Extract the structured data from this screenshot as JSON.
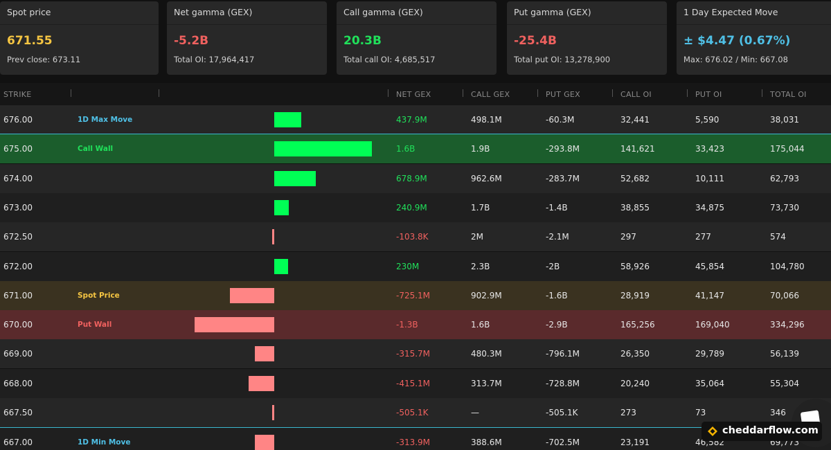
{
  "colors": {
    "green": "#20e05a",
    "red": "#f0615f",
    "yellow": "#f5c542",
    "blue": "#4fc0e6",
    "bar_pos": "#00ff55",
    "bar_neg": "#ff8585"
  },
  "cards": [
    {
      "title": "Spot price",
      "value": "671.55",
      "sub": "Prev close: 673.11",
      "color": "#f5c542"
    },
    {
      "title": "Net gamma (GEX)",
      "value": "-5.2B",
      "sub": "Total OI: 17,964,417",
      "color": "#f0615f"
    },
    {
      "title": "Call gamma (GEX)",
      "value": "20.3B",
      "sub": "Total call OI: 4,685,517",
      "color": "#20e05a"
    },
    {
      "title": "Put gamma (GEX)",
      "value": "-25.4B",
      "sub": "Total put OI: 13,278,900",
      "color": "#f0615f"
    },
    {
      "title": "1 Day Expected Move",
      "value": "± $4.47 (0.67%)",
      "sub": "Max: 676.02 / Min: 667.08",
      "color": "#4fc0e6"
    }
  ],
  "table": {
    "headers": [
      "STRIKE",
      "NET GEX",
      "CALL GEX",
      "PUT GEX",
      "CALL OI",
      "PUT OI",
      "TOTAL OI"
    ],
    "rows": [
      {
        "strike": "676.00",
        "label": "1D Max Move",
        "label_type": "max",
        "net_gex": "437.9M",
        "net_gex_value": 437.9,
        "call_gex": "498.1M",
        "put_gex": "-60.3M",
        "call_oi": "32,441",
        "put_oi": "5,590",
        "total_oi": "38,031"
      },
      {
        "strike": "675.00",
        "label": "Call Wall",
        "label_type": "callwall",
        "net_gex": "1.6B",
        "net_gex_value": 1600,
        "call_gex": "1.9B",
        "put_gex": "-293.8M",
        "call_oi": "141,621",
        "put_oi": "33,423",
        "total_oi": "175,044"
      },
      {
        "strike": "674.00",
        "label": "",
        "label_type": "",
        "net_gex": "678.9M",
        "net_gex_value": 678.9,
        "call_gex": "962.6M",
        "put_gex": "-283.7M",
        "call_oi": "52,682",
        "put_oi": "10,111",
        "total_oi": "62,793"
      },
      {
        "strike": "673.00",
        "label": "",
        "label_type": "",
        "net_gex": "240.9M",
        "net_gex_value": 240.9,
        "call_gex": "1.7B",
        "put_gex": "-1.4B",
        "call_oi": "38,855",
        "put_oi": "34,875",
        "total_oi": "73,730"
      },
      {
        "strike": "672.50",
        "label": "",
        "label_type": "",
        "net_gex": "-103.8K",
        "net_gex_value": -0.1038,
        "call_gex": "2M",
        "put_gex": "-2.1M",
        "call_oi": "297",
        "put_oi": "277",
        "total_oi": "574"
      },
      {
        "strike": "672.00",
        "label": "",
        "label_type": "",
        "net_gex": "230M",
        "net_gex_value": 230,
        "call_gex": "2.3B",
        "put_gex": "-2B",
        "call_oi": "58,926",
        "put_oi": "45,854",
        "total_oi": "104,780"
      },
      {
        "strike": "671.00",
        "label": "Spot Price",
        "label_type": "spot",
        "net_gex": "-725.1M",
        "net_gex_value": -725.1,
        "call_gex": "902.9M",
        "put_gex": "-1.6B",
        "call_oi": "28,919",
        "put_oi": "41,147",
        "total_oi": "70,066"
      },
      {
        "strike": "670.00",
        "label": "Put Wall",
        "label_type": "putwall",
        "net_gex": "-1.3B",
        "net_gex_value": -1300,
        "call_gex": "1.6B",
        "put_gex": "-2.9B",
        "call_oi": "165,256",
        "put_oi": "169,040",
        "total_oi": "334,296"
      },
      {
        "strike": "669.00",
        "label": "",
        "label_type": "",
        "net_gex": "-315.7M",
        "net_gex_value": -315.7,
        "call_gex": "480.3M",
        "put_gex": "-796.1M",
        "call_oi": "26,350",
        "put_oi": "29,789",
        "total_oi": "56,139"
      },
      {
        "strike": "668.00",
        "label": "",
        "label_type": "",
        "net_gex": "-415.1M",
        "net_gex_value": -415.1,
        "call_gex": "313.7M",
        "put_gex": "-728.8M",
        "call_oi": "20,240",
        "put_oi": "35,064",
        "total_oi": "55,304"
      },
      {
        "strike": "667.50",
        "label": "",
        "label_type": "",
        "net_gex": "-505.1K",
        "net_gex_value": -0.5051,
        "call_gex": "—",
        "put_gex": "-505.1K",
        "call_oi": "273",
        "put_oi": "73",
        "total_oi": "346"
      },
      {
        "strike": "667.00",
        "label": "1D Min Move",
        "label_type": "min",
        "net_gex": "-313.9M",
        "net_gex_value": -313.9,
        "call_gex": "388.6M",
        "put_gex": "-702.5M",
        "call_oi": "23,191",
        "put_oi": "46,582",
        "total_oi": "69,773"
      }
    ]
  },
  "branding": {
    "text": "cheddarflow.com",
    "logo_icon": "cheddar-logo-icon",
    "chat_icon": "chat-icon"
  }
}
